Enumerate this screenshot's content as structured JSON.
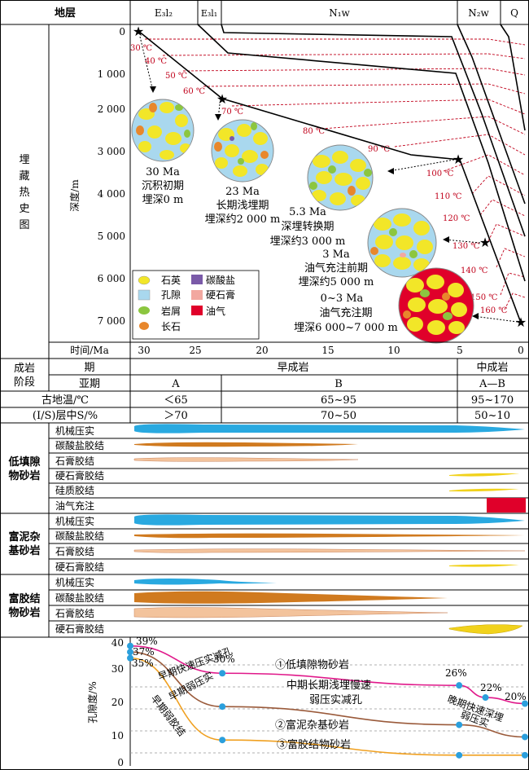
{
  "header": {
    "strata_label": "地层",
    "units": [
      "E₃l₂",
      "E₃l₁",
      "N₁w",
      "N₂w",
      "Q"
    ]
  },
  "burial": {
    "side_label": "埋藏热史图",
    "depth_axis_label": "深度/m",
    "depth_ticks": [
      "0",
      "1 000",
      "2 000",
      "3 000",
      "4 000",
      "5 000",
      "6 000",
      "7 000"
    ],
    "time_label": "时间/Ma",
    "time_ticks": [
      "30",
      "25",
      "20",
      "15",
      "10",
      "5",
      "0"
    ],
    "isotherms": [
      "30 ℃",
      "40 ℃",
      "50 ℃",
      "60 ℃",
      "70 ℃",
      "80 ℃",
      "90 ℃",
      "100 ℃",
      "110 ℃",
      "120 ℃",
      "130 ℃",
      "140 ℃",
      "150 ℃",
      "160 ℃"
    ],
    "stages": [
      {
        "age": "30 Ma",
        "name": "沉积初期",
        "depth": "埋深0 m"
      },
      {
        "age": "23 Ma",
        "name": "长期浅埋期",
        "depth": "埋深约2 000 m"
      },
      {
        "age": "5.3 Ma",
        "name": "深埋转换期",
        "depth": "埋深约3 000 m"
      },
      {
        "age": "3 Ma",
        "name": "油气充注前期",
        "depth": "埋深约5 000 m"
      },
      {
        "age": "0~3 Ma",
        "name": "油气充注期",
        "depth": "埋深6 000~7 000 m"
      }
    ],
    "legend": [
      {
        "label": "石英",
        "color": "#f2e628"
      },
      {
        "label": "碳酸盐",
        "color": "#7a5aa8"
      },
      {
        "label": "孔隙",
        "color": "#a9d8ee"
      },
      {
        "label": "硬石膏",
        "color": "#f2a8a0"
      },
      {
        "label": "岩屑",
        "color": "#8cc63f"
      },
      {
        "label": "油气",
        "color": "#e0002a"
      },
      {
        "label": "长石",
        "color": "#e8872c"
      }
    ]
  },
  "table": {
    "row1_label": "成岩阶段",
    "period_label": "期",
    "subperiod_label": "亚期",
    "early_label": "早成岩",
    "mid_label": "中成岩",
    "sub_a": "A",
    "sub_b": "B",
    "sub_ab": "A—B",
    "temp_label": "古地温/℃",
    "temp_vals": [
      "＜65",
      "65~95",
      "95~170"
    ],
    "is_label": "(I/S)层中S/%",
    "is_vals": [
      "＞70",
      "70~50",
      "50~10"
    ]
  },
  "processes": [
    {
      "group": "低填隙物砂岩",
      "rows": [
        "机械压实",
        "碳酸盐胶结",
        "石膏胶结",
        "硬石膏胶结",
        "硅质胶结",
        "油气充注"
      ]
    },
    {
      "group": "富泥杂基砂岩",
      "rows": [
        "机械压实",
        "碳酸盐胶结",
        "石膏胶结",
        "硬石膏胶结"
      ]
    },
    {
      "group": "富胶结物砂岩",
      "rows": [
        "机械压实",
        "碳酸盐胶结",
        "石膏胶结",
        "硬石膏胶结"
      ]
    }
  ],
  "colors": {
    "compaction": "#29a9e0",
    "carbonate": "#d07a1f",
    "gypsum": "#f3c39c",
    "anhydrite": "#f1d21c",
    "oil": "#e0002a",
    "curve1": "#e0188a",
    "curve2": "#9a5a3a",
    "curve3": "#f0a020"
  },
  "chart_data": {
    "type": "line",
    "ylabel": "孔隙度/%",
    "yticks": [
      "40",
      "30",
      "20",
      "10",
      "0"
    ],
    "ylim": [
      0,
      40
    ],
    "xlim": [
      30,
      0
    ],
    "series": [
      {
        "name": "①低填隙物砂岩",
        "x": [
          30,
          23,
          5,
          3,
          0
        ],
        "y": [
          39,
          30,
          26,
          22,
          20
        ]
      },
      {
        "name": "②富泥杂基砂岩",
        "x": [
          30,
          23,
          5,
          0
        ],
        "y": [
          37,
          19,
          13,
          9
        ]
      },
      {
        "name": "③富胶结物砂岩",
        "x": [
          30,
          23,
          5,
          0
        ],
        "y": [
          35,
          8,
          3,
          3
        ]
      }
    ],
    "point_labels": [
      "39%",
      "37%",
      "35%",
      "30%",
      "26%",
      "22%",
      "20%"
    ],
    "annotations": [
      "早期快速压实减孔",
      "早期弱压实",
      "早期弱胶结",
      "中期长期浅埋慢速",
      "弱压实减孔",
      "晚期快速深埋",
      "弱压实"
    ]
  }
}
